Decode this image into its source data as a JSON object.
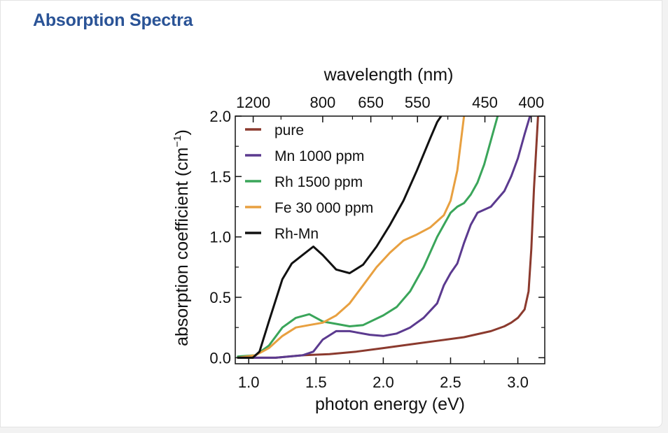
{
  "card": {
    "title": "Absorption Spectra"
  },
  "chart_data": {
    "type": "line",
    "title": "",
    "xlabel": "photon energy (eV)",
    "ylabel_main": "absorption coefficient (cm",
    "ylabel_sup": "−1",
    "ylabel_close": ")",
    "top_xlabel": "wavelength (nm)",
    "xlim": [
      0.9,
      3.2
    ],
    "ylim": [
      -0.05,
      2.0
    ],
    "x_ticks": [
      1.0,
      1.5,
      2.0,
      2.5,
      3.0
    ],
    "x_tick_labels": [
      "1.0",
      "1.5",
      "2.0",
      "2.5",
      "3.0"
    ],
    "y_ticks": [
      0.0,
      0.5,
      1.0,
      1.5,
      2.0
    ],
    "y_tick_labels": [
      "0.0",
      "0.5",
      "1.0",
      "1.5",
      "2.0"
    ],
    "top_ticks_nm": [
      1200,
      800,
      650,
      550,
      450,
      400
    ],
    "top_tick_labels": [
      "1200",
      "800",
      "650",
      "550",
      "450",
      "400"
    ],
    "legend_position": "top-left",
    "grid": false,
    "series": [
      {
        "name": "pure",
        "color": "#8b3a2e",
        "x": [
          0.92,
          1.0,
          1.2,
          1.4,
          1.6,
          1.8,
          2.0,
          2.2,
          2.4,
          2.6,
          2.8,
          2.9,
          2.95,
          3.0,
          3.05,
          3.08,
          3.1,
          3.12,
          3.15
        ],
        "y": [
          0.0,
          0.0,
          0.0,
          0.02,
          0.03,
          0.05,
          0.08,
          0.11,
          0.14,
          0.17,
          0.22,
          0.26,
          0.29,
          0.33,
          0.4,
          0.55,
          0.9,
          1.4,
          2.0
        ]
      },
      {
        "name": "Mn 1000 ppm",
        "color": "#5b3a8f",
        "x": [
          0.92,
          1.2,
          1.4,
          1.48,
          1.55,
          1.65,
          1.75,
          1.9,
          2.0,
          2.1,
          2.2,
          2.3,
          2.4,
          2.45,
          2.5,
          2.55,
          2.6,
          2.65,
          2.7,
          2.8,
          2.9,
          2.95,
          3.0,
          3.05,
          3.09
        ],
        "y": [
          0.0,
          0.0,
          0.02,
          0.05,
          0.15,
          0.22,
          0.22,
          0.19,
          0.18,
          0.2,
          0.25,
          0.33,
          0.45,
          0.6,
          0.7,
          0.78,
          0.95,
          1.1,
          1.2,
          1.25,
          1.38,
          1.5,
          1.65,
          1.85,
          2.0
        ]
      },
      {
        "name": "Rh 1500 ppm",
        "color": "#3aa55a",
        "x": [
          0.92,
          1.05,
          1.15,
          1.25,
          1.35,
          1.45,
          1.55,
          1.65,
          1.75,
          1.85,
          2.0,
          2.1,
          2.2,
          2.3,
          2.4,
          2.5,
          2.55,
          2.6,
          2.65,
          2.7,
          2.75,
          2.8,
          2.85
        ],
        "y": [
          0.01,
          0.02,
          0.1,
          0.25,
          0.33,
          0.36,
          0.3,
          0.28,
          0.26,
          0.27,
          0.35,
          0.42,
          0.55,
          0.75,
          1.0,
          1.2,
          1.25,
          1.28,
          1.35,
          1.45,
          1.6,
          1.8,
          2.0
        ]
      },
      {
        "name": "Fe 30 000 ppm",
        "color": "#e8a040",
        "x": [
          0.92,
          1.05,
          1.15,
          1.25,
          1.35,
          1.45,
          1.55,
          1.65,
          1.75,
          1.85,
          1.95,
          2.05,
          2.15,
          2.25,
          2.35,
          2.45,
          2.5,
          2.55,
          2.6
        ],
        "y": [
          0.0,
          0.02,
          0.08,
          0.18,
          0.25,
          0.27,
          0.29,
          0.35,
          0.45,
          0.6,
          0.75,
          0.87,
          0.97,
          1.02,
          1.08,
          1.18,
          1.3,
          1.55,
          2.0
        ]
      },
      {
        "name": "Rh-Mn",
        "color": "#111111",
        "x": [
          0.92,
          1.03,
          1.08,
          1.15,
          1.25,
          1.32,
          1.4,
          1.48,
          1.55,
          1.65,
          1.75,
          1.85,
          1.95,
          2.05,
          2.15,
          2.25,
          2.35,
          2.4,
          2.43
        ],
        "y": [
          0.0,
          0.0,
          0.05,
          0.3,
          0.65,
          0.78,
          0.85,
          0.92,
          0.85,
          0.73,
          0.7,
          0.77,
          0.92,
          1.1,
          1.3,
          1.55,
          1.82,
          1.95,
          2.0
        ]
      }
    ]
  }
}
